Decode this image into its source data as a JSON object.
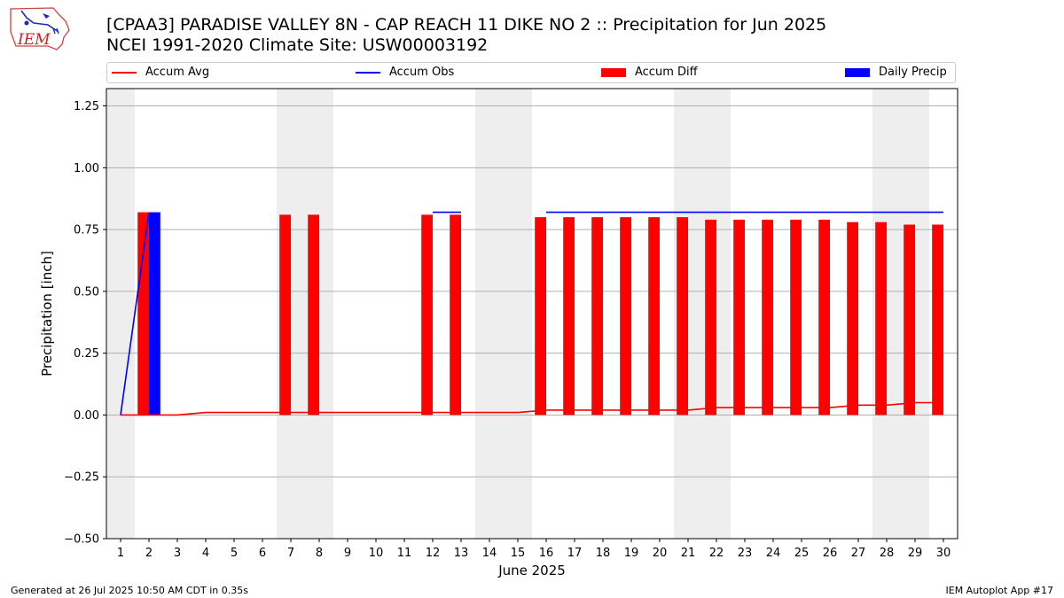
{
  "header": {
    "title_line1": "[CPAA3] PARADISE VALLEY 8N - CAP REACH 11 DIKE NO 2 :: Precipitation for Jun 2025",
    "title_line2": "NCEI 1991-2020 Climate Site: USW00003192",
    "logo_text": "IEM"
  },
  "legend": {
    "items": [
      {
        "label": "Accum Avg",
        "kind": "line",
        "color": "#ff0000"
      },
      {
        "label": "Accum Obs",
        "kind": "line",
        "color": "#0000ff"
      },
      {
        "label": "Accum Diff",
        "kind": "box",
        "color": "#ff0000"
      },
      {
        "label": "Daily Precip",
        "kind": "box",
        "color": "#0000ff"
      }
    ]
  },
  "footer": {
    "generated": "Generated at 26 Jul 2025 10:50 AM CDT in 0.35s",
    "app": "IEM Autoplot App #17"
  },
  "colors": {
    "accum_avg": "#ff0000",
    "accum_obs": "#0000ff",
    "accum_diff": "#ff0000",
    "daily_precip": "#0000ff",
    "weekend_shade": "#eeeeee",
    "grid": "#b0b0b0"
  },
  "chart_data": {
    "type": "bar",
    "xlabel": "June 2025",
    "ylabel": "Precipitation [inch]",
    "xlim": [
      0.5,
      30.5
    ],
    "ylim": [
      -0.5,
      1.32
    ],
    "yticks": [
      -0.5,
      -0.25,
      0.0,
      0.25,
      0.5,
      0.75,
      1.0,
      1.25
    ],
    "ytick_labels": [
      "−0.50",
      "−0.25",
      "0.00",
      "0.25",
      "0.50",
      "0.75",
      "1.00",
      "1.25"
    ],
    "days": [
      1,
      2,
      3,
      4,
      5,
      6,
      7,
      8,
      9,
      10,
      11,
      12,
      13,
      14,
      15,
      16,
      17,
      18,
      19,
      20,
      21,
      22,
      23,
      24,
      25,
      26,
      27,
      28,
      29,
      30
    ],
    "grid": "horizontal",
    "legend_position": "top",
    "weekend_spans": [
      [
        0.5,
        1.5
      ],
      [
        6.5,
        8.5
      ],
      [
        13.5,
        15.5
      ],
      [
        20.5,
        22.5
      ],
      [
        27.5,
        29.5
      ]
    ],
    "series": [
      {
        "name": "Accum Avg",
        "type": "line",
        "values": [
          0.0,
          0.0,
          0.0,
          0.01,
          0.01,
          0.01,
          0.01,
          0.01,
          0.01,
          0.01,
          0.01,
          0.01,
          0.01,
          0.01,
          0.01,
          0.02,
          0.02,
          0.02,
          0.02,
          0.02,
          0.02,
          0.03,
          0.03,
          0.03,
          0.03,
          0.03,
          0.04,
          0.04,
          0.05,
          0.05
        ]
      },
      {
        "name": "Accum Obs",
        "type": "line",
        "values": [
          0.0,
          0.82,
          null,
          null,
          null,
          null,
          null,
          0.82,
          null,
          null,
          null,
          0.82,
          0.82,
          null,
          null,
          0.82,
          0.82,
          0.82,
          0.82,
          0.82,
          0.82,
          0.82,
          0.82,
          0.82,
          0.82,
          0.82,
          0.82,
          0.82,
          0.82,
          0.82
        ]
      },
      {
        "name": "Accum Diff",
        "type": "bar",
        "values": [
          null,
          0.82,
          null,
          null,
          null,
          null,
          0.81,
          0.81,
          null,
          null,
          null,
          0.81,
          0.81,
          null,
          null,
          0.8,
          0.8,
          0.8,
          0.8,
          0.8,
          0.8,
          0.79,
          0.79,
          0.79,
          0.79,
          0.79,
          0.78,
          0.78,
          0.77,
          0.77
        ]
      },
      {
        "name": "Daily Precip",
        "type": "bar",
        "values": [
          null,
          0.82,
          null,
          null,
          null,
          null,
          null,
          null,
          null,
          null,
          null,
          null,
          null,
          null,
          null,
          null,
          null,
          null,
          null,
          null,
          null,
          null,
          null,
          null,
          null,
          null,
          null,
          null,
          null,
          null
        ]
      }
    ]
  }
}
